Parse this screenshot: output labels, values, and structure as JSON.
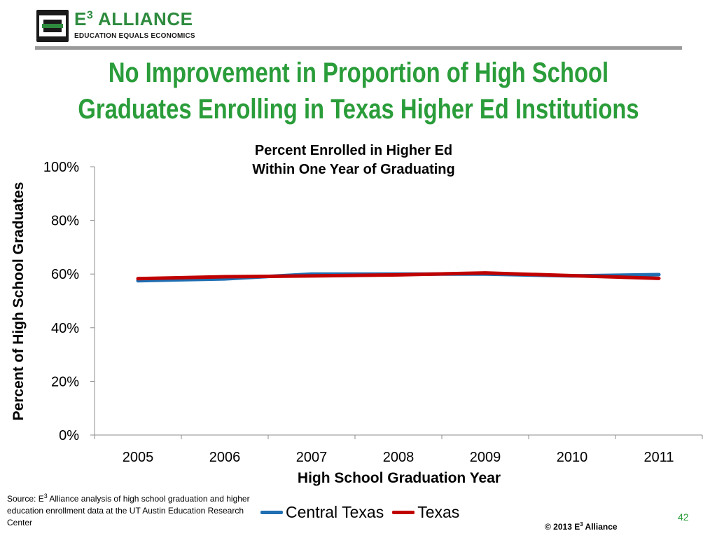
{
  "logo": {
    "text_main": "E",
    "text_main_sup": "3",
    "text_main_rest": " ALLIANCE",
    "tagline": "EDUCATION EQUALS ECONOMICS"
  },
  "slide": {
    "title_line1": "No Improvement in Proportion of High School",
    "title_line2": "Graduates Enrolling in Texas Higher Ed Institutions",
    "page_number": "42",
    "copyright_pre": "© 2013 E",
    "copyright_sup": "3",
    "copyright_post": " Alliance",
    "source_pre": "Source: E",
    "source_sup": "3",
    "source_post": " Alliance analysis of high school graduation and higher education enrollment data at the UT Austin Education Research Center"
  },
  "chart_data": {
    "type": "line",
    "title_line1": "Percent Enrolled in Higher Ed",
    "title_line2": "Within One Year of Graduating",
    "xlabel": "High School Graduation Year",
    "ylabel": "Percent of High School Graduates",
    "categories": [
      "2005",
      "2006",
      "2007",
      "2008",
      "2009",
      "2010",
      "2011"
    ],
    "ylim": [
      0,
      100
    ],
    "yticks": [
      0,
      20,
      40,
      60,
      80,
      100
    ],
    "ytick_labels": [
      "0%",
      "20%",
      "40%",
      "60%",
      "80%",
      "100%"
    ],
    "grid": false,
    "legend_position": "bottom",
    "series": [
      {
        "name": "Central Texas",
        "color": "#1f6fb2",
        "values": [
          57.5,
          58.2,
          60.0,
          60.0,
          60.0,
          59.3,
          59.8
        ]
      },
      {
        "name": "Texas",
        "color": "#c00000",
        "values": [
          58.3,
          59.0,
          59.3,
          59.7,
          60.4,
          59.4,
          58.4
        ]
      }
    ]
  }
}
